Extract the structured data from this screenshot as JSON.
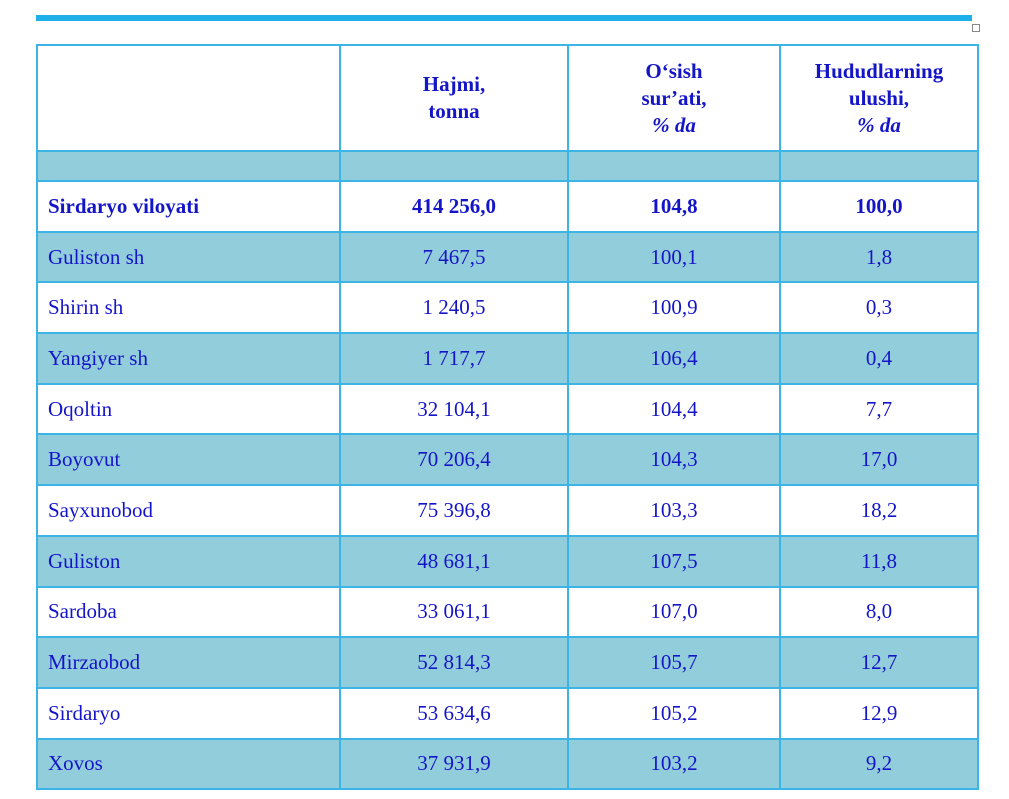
{
  "table": {
    "header": [
      [],
      [
        "Hajmi,",
        "tonna"
      ],
      [
        "O‘sish",
        "sur’ati,",
        "% da"
      ],
      [
        "Hududlarning",
        "ulushi,",
        "% da"
      ]
    ],
    "rows": [
      [
        "Sirdaryo viloyati",
        "414 256,0",
        "104,8",
        "100,0"
      ],
      [
        "Guliston sh",
        "7 467,5",
        "100,1",
        "1,8"
      ],
      [
        "Shirin sh",
        "1 240,5",
        "100,9",
        "0,3"
      ],
      [
        "Yangiyer sh",
        "1 717,7",
        "106,4",
        "0,4"
      ],
      [
        "Oqoltin",
        "32 104,1",
        "104,4",
        "7,7"
      ],
      [
        "Boyovut",
        "70 206,4",
        "104,3",
        "17,0"
      ],
      [
        "Sayxunobod",
        "75 396,8",
        "103,3",
        "18,2"
      ],
      [
        "Guliston",
        "48 681,1",
        "107,5",
        "11,8"
      ],
      [
        "Sardoba",
        "33 061,1",
        "107,0",
        "8,0"
      ],
      [
        "Mirzaobod",
        "52 814,3",
        "105,7",
        "12,7"
      ],
      [
        "Sirdaryo",
        "53 634,6",
        "105,2",
        "12,9"
      ],
      [
        "Xovos",
        "37 931,9",
        "103,2",
        "9,2"
      ]
    ]
  }
}
